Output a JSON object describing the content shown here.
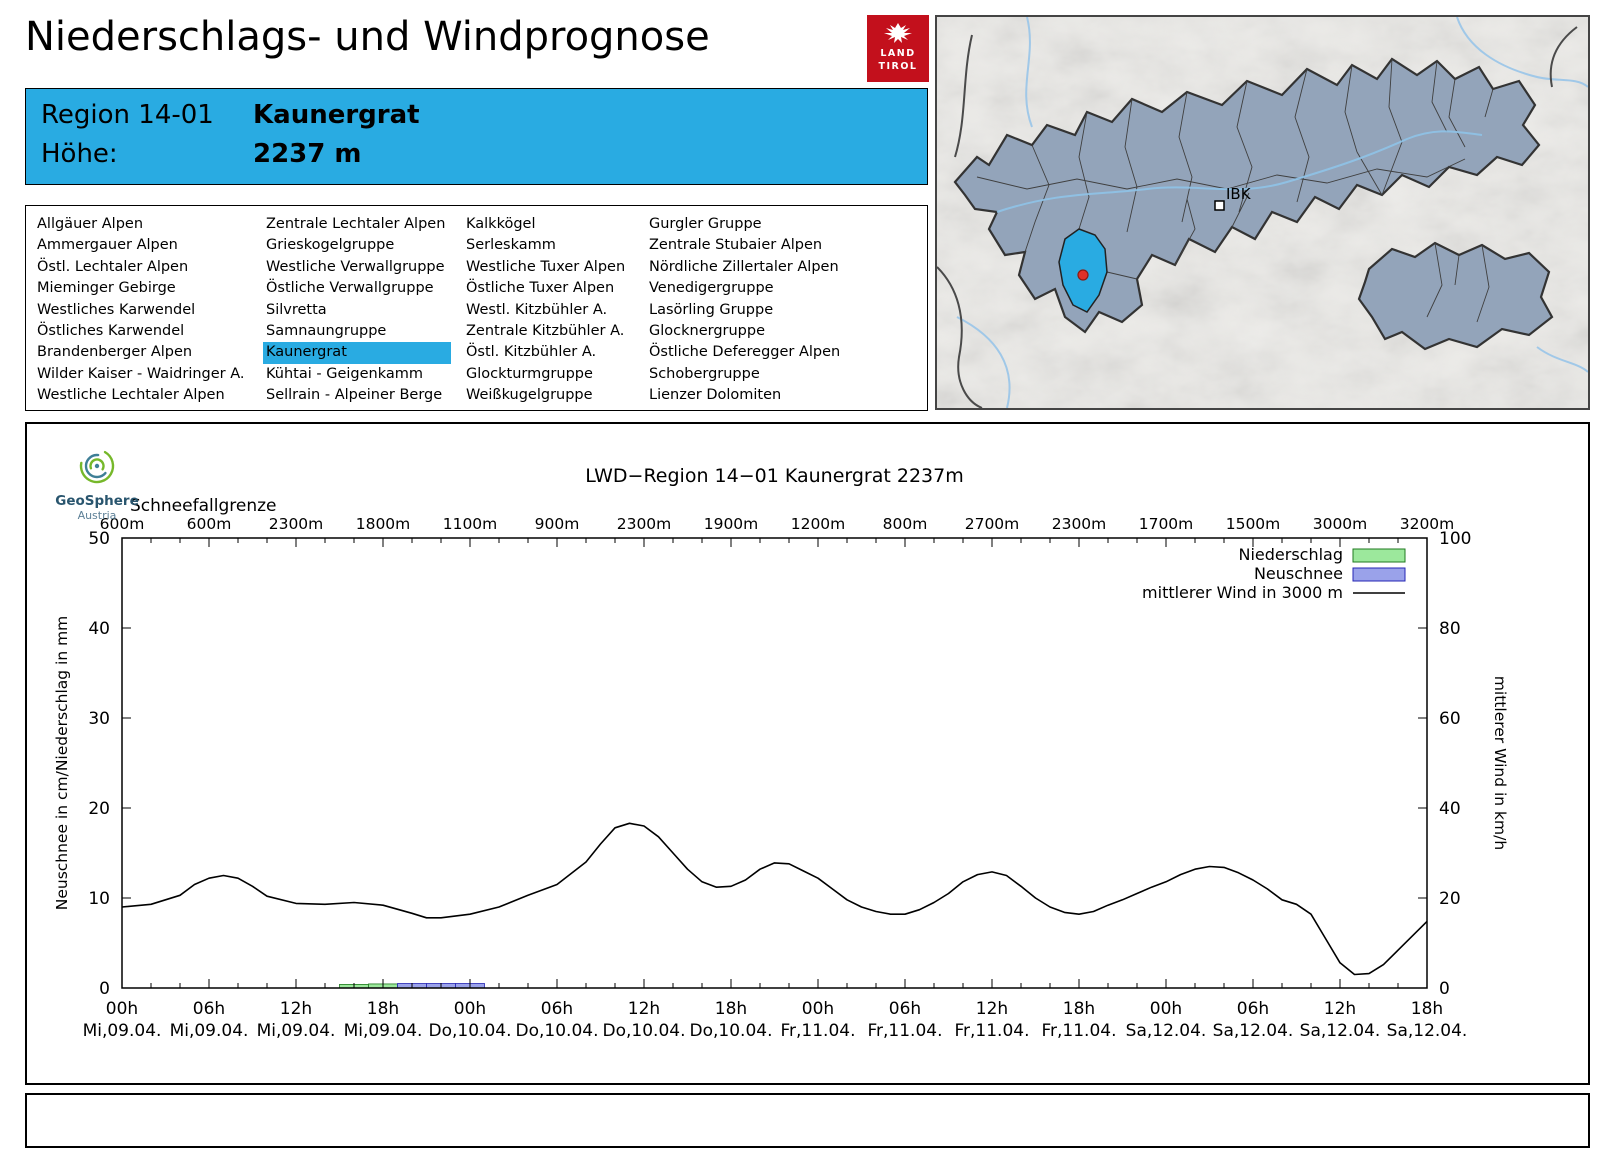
{
  "page": {
    "title": "Niederschlags- und Windprognose"
  },
  "logo": {
    "line1": "LAND",
    "line2": "TIROL"
  },
  "region_box": {
    "region_label": "Region 14-01",
    "region_value": "Kaunergrat",
    "hoehe_label": "Höhe:",
    "hoehe_value": "2237 m"
  },
  "region_list": {
    "selected": "Kaunergrat",
    "columns": [
      [
        "Allgäuer Alpen",
        "Ammergauer Alpen",
        "Östl. Lechtaler Alpen",
        "Mieminger Gebirge",
        "Westliches Karwendel",
        "Östliches Karwendel",
        "Brandenberger Alpen",
        "Wilder Kaiser - Waidringer A.",
        "Westliche Lechtaler Alpen"
      ],
      [
        "Zentrale Lechtaler Alpen",
        "Grieskogelgruppe",
        "Westliche Verwallgruppe",
        "Östliche Verwallgruppe",
        "Silvretta",
        "Samnaungruppe",
        "Kaunergrat",
        "Kühtai - Geigenkamm",
        "Sellrain - Alpeiner Berge"
      ],
      [
        "Kalkkögel",
        "Serleskamm",
        "Westliche Tuxer Alpen",
        "Östliche Tuxer Alpen",
        "Westl. Kitzbühler A.",
        "Zentrale Kitzbühler A.",
        "Östl. Kitzbühler A.",
        "Glockturmgruppe",
        "Weißkugelgruppe"
      ],
      [
        "Gurgler Gruppe",
        "Zentrale Stubaier Alpen",
        "Nördliche Zillertaler Alpen",
        "Venedigergruppe",
        "Lasörling Gruppe",
        "Glocknergruppe",
        "Östliche Deferegger Alpen",
        "Schobergruppe",
        "Lienzer Dolomiten"
      ]
    ]
  },
  "map": {
    "city_label": "IBK"
  },
  "geosphere": {
    "name": "GeoSphere",
    "sub": "Austria"
  },
  "colors": {
    "accent_blue": "#29abe2",
    "logo_red": "#c3101c",
    "map_region": "#93a4ba",
    "niederschlag_fill": "#9ce89c",
    "niederschlag_stroke": "#1f7a1f",
    "neuschnee_fill": "#9aa2ea",
    "neuschnee_stroke": "#2424b4",
    "wind_line": "#000000"
  },
  "chart_data": {
    "type": "line",
    "title": "LWD−Region 14−01 Kaunergrat 2237m",
    "ylabel_left": "Neuschnee in cm/Niederschlag in mm",
    "ylabel_right": "mittlerer Wind in km/h",
    "ylim_left": [
      0,
      50
    ],
    "ylim_right": [
      0,
      100
    ],
    "yticks_left": [
      0,
      10,
      20,
      30,
      40,
      50
    ],
    "yticks_right": [
      0,
      20,
      40,
      60,
      80,
      100
    ],
    "x_range": [
      0,
      90
    ],
    "xticks": {
      "step_hours": 6,
      "time": [
        "00h",
        "06h",
        "12h",
        "18h",
        "00h",
        "06h",
        "12h",
        "18h",
        "00h",
        "06h",
        "12h",
        "18h",
        "00h",
        "06h",
        "12h",
        "18h"
      ],
      "date": [
        "Mi,09.04.",
        "Mi,09.04.",
        "Mi,09.04.",
        "Mi,09.04.",
        "Do,10.04.",
        "Do,10.04.",
        "Do,10.04.",
        "Do,10.04.",
        "Fr,11.04.",
        "Fr,11.04.",
        "Fr,11.04.",
        "Fr,11.04.",
        "Sa,12.04.",
        "Sa,12.04.",
        "Sa,12.04.",
        "Sa,12.04."
      ]
    },
    "schneefallgrenze": {
      "label": "Schneefallgrenze",
      "values": [
        "600m",
        "600m",
        "2300m",
        "1800m",
        "1100m",
        "900m",
        "2300m",
        "1900m",
        "1200m",
        "800m",
        "2700m",
        "2300m",
        "1700m",
        "1500m",
        "3000m",
        "3200m"
      ]
    },
    "legend": [
      {
        "label": "Niederschlag",
        "type": "box",
        "fill": "#9ce89c",
        "stroke": "#1f7a1f"
      },
      {
        "label": "Neuschnee",
        "type": "box",
        "fill": "#9aa2ea",
        "stroke": "#2424b4"
      },
      {
        "label": "mittlerer Wind in 3000 m",
        "type": "line",
        "stroke": "#000000"
      }
    ],
    "series": [
      {
        "name": "Niederschlag",
        "unit": "mm",
        "axis": "left",
        "bars": [
          [
            15,
            0.4
          ],
          [
            16,
            0.4
          ],
          [
            17,
            0.45
          ],
          [
            18,
            0.45
          ],
          [
            19,
            0.4
          ]
        ]
      },
      {
        "name": "Neuschnee",
        "unit": "cm",
        "axis": "left",
        "bars": [
          [
            19,
            0.5
          ],
          [
            20,
            0.5
          ],
          [
            21,
            0.5
          ],
          [
            22,
            0.5
          ],
          [
            23,
            0.5
          ],
          [
            24,
            0.5
          ]
        ]
      },
      {
        "name": "mittlerer Wind in 3000 m",
        "unit": "km/h",
        "axis": "right",
        "x": [
          0,
          2,
          4,
          5,
          6,
          7,
          8,
          9,
          10,
          12,
          14,
          16,
          18,
          20,
          21,
          22,
          24,
          26,
          28,
          30,
          32,
          33,
          34,
          35,
          36,
          37,
          38,
          39,
          40,
          41,
          42,
          43,
          44,
          45,
          46,
          47,
          48,
          49,
          50,
          51,
          52,
          53,
          54,
          55,
          56,
          57,
          58,
          59,
          60,
          61,
          62,
          63,
          64,
          65,
          66,
          67,
          68,
          69,
          70,
          71,
          72,
          73,
          74,
          75,
          76,
          77,
          78,
          79,
          80,
          81,
          82,
          83,
          84,
          85,
          86,
          87,
          88,
          89,
          90
        ],
        "values": [
          18,
          18.6,
          20.6,
          23,
          24.4,
          25,
          24.4,
          22.6,
          20.4,
          18.8,
          18.6,
          19,
          18.4,
          16.6,
          15.6,
          15.6,
          16.4,
          18,
          20.6,
          23,
          28,
          32,
          35.6,
          36.6,
          36,
          33.6,
          30,
          26.4,
          23.6,
          22.4,
          22.6,
          24,
          26.4,
          27.8,
          27.6,
          26,
          24.4,
          22,
          19.6,
          18,
          17,
          16.4,
          16.4,
          17.4,
          19,
          21,
          23.6,
          25.2,
          25.8,
          25,
          22.6,
          20,
          18,
          16.8,
          16.4,
          17,
          18.4,
          19.6,
          21,
          22.4,
          23.6,
          25.2,
          26.4,
          27,
          26.8,
          25.6,
          24,
          22,
          19.6,
          18.6,
          16.4,
          11,
          5.6,
          3,
          3.2,
          5.2,
          8.4,
          11.6,
          14.8
        ]
      }
    ]
  }
}
